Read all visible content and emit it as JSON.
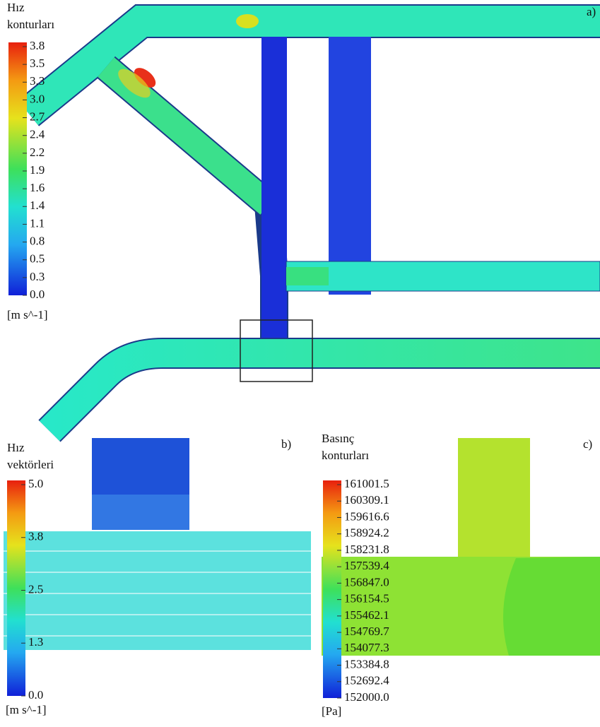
{
  "panels": [
    {
      "label": "a)",
      "legend_title": [
        "Hız",
        "konturları"
      ],
      "ticks": [
        "3.8",
        "3.5",
        "3.3",
        "3.0",
        "2.7",
        "2.4",
        "2.2",
        "1.9",
        "1.6",
        "1.4",
        "1.1",
        "0.8",
        "0.5",
        "0.3",
        "0.0"
      ],
      "unit": "[m s^-1]"
    },
    {
      "label": "b)",
      "legend_title": [
        "Hız",
        "vektörleri"
      ],
      "ticks": [
        "5.0",
        "3.8",
        "2.5",
        "1.3",
        "0.0"
      ],
      "unit": "[m s^-1]"
    },
    {
      "label": "c)",
      "legend_title": [
        "Basınç",
        "konturları"
      ],
      "ticks": [
        "161001.5",
        "160309.1",
        "159616.6",
        "158924.2",
        "158231.8",
        "157539.4",
        "156847.0",
        "156154.5",
        "155462.1",
        "154769.7",
        "154077.3",
        "153384.8",
        "152692.4",
        "152000.0"
      ],
      "unit": "[Pa]"
    }
  ]
}
